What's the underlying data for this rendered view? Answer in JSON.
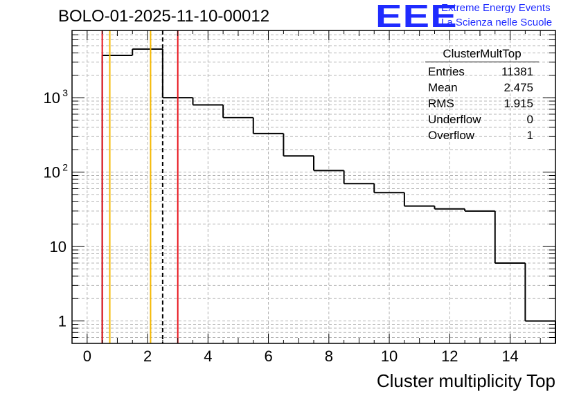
{
  "chart_data": {
    "type": "histogram",
    "title": "BOLO-01-2025-11-10-00012",
    "xlabel": "Cluster multiplicity Top",
    "ylabel": "",
    "yscale": "log",
    "xlim": [
      -0.5,
      15.5
    ],
    "ylim": [
      0.5,
      8000
    ],
    "bins": [
      {
        "lo": 0.5,
        "hi": 1.5,
        "value": 3700
      },
      {
        "lo": 1.5,
        "hi": 2.5,
        "value": 4500
      },
      {
        "lo": 2.5,
        "hi": 3.5,
        "value": 1000
      },
      {
        "lo": 3.5,
        "hi": 4.5,
        "value": 800
      },
      {
        "lo": 4.5,
        "hi": 5.5,
        "value": 540
      },
      {
        "lo": 5.5,
        "hi": 6.5,
        "value": 330
      },
      {
        "lo": 6.5,
        "hi": 7.5,
        "value": 165
      },
      {
        "lo": 7.5,
        "hi": 8.5,
        "value": 105
      },
      {
        "lo": 8.5,
        "hi": 9.5,
        "value": 70
      },
      {
        "lo": 9.5,
        "hi": 10.5,
        "value": 53
      },
      {
        "lo": 10.5,
        "hi": 11.5,
        "value": 35
      },
      {
        "lo": 11.5,
        "hi": 12.5,
        "value": 32
      },
      {
        "lo": 12.5,
        "hi": 13.5,
        "value": 30
      },
      {
        "lo": 13.5,
        "hi": 14.5,
        "value": 6
      },
      {
        "lo": 14.5,
        "hi": 15.5,
        "value": 1
      }
    ],
    "x_ticks": [
      {
        "v": 0,
        "label": "0"
      },
      {
        "v": 2,
        "label": "2"
      },
      {
        "v": 4,
        "label": "4"
      },
      {
        "v": 6,
        "label": "6"
      },
      {
        "v": 8,
        "label": "8"
      },
      {
        "v": 10,
        "label": "10"
      },
      {
        "v": 12,
        "label": "12"
      },
      {
        "v": 14,
        "label": "14"
      }
    ],
    "y_ticks": [
      {
        "v": 1,
        "base": "1",
        "exp": ""
      },
      {
        "v": 10,
        "base": "10",
        "exp": ""
      },
      {
        "v": 100,
        "base": "10",
        "exp": "2"
      },
      {
        "v": 1000,
        "base": "10",
        "exp": "3"
      }
    ],
    "vertical_lines": [
      {
        "x": 0.5,
        "color": "#e8121b",
        "style": "solid"
      },
      {
        "x": 0.75,
        "color": "#f5b800",
        "style": "solid"
      },
      {
        "x": 2.1,
        "color": "#f5b800",
        "style": "solid"
      },
      {
        "x": 2.5,
        "color": "#000000",
        "style": "dashed"
      },
      {
        "x": 3.0,
        "color": "#e8121b",
        "style": "solid"
      }
    ],
    "grid": true
  },
  "logo": {
    "mark": "EEE",
    "line1": "Extreme Energy Events",
    "line2": "La Scienza nelle Scuole",
    "color": "#1f2bff"
  },
  "stats": {
    "title": "ClusterMultTop",
    "rows": [
      {
        "label": "Entries",
        "value": "11381"
      },
      {
        "label": "Mean",
        "value": "2.475"
      },
      {
        "label": "RMS",
        "value": "1.915"
      },
      {
        "label": "Underflow",
        "value": "0"
      },
      {
        "label": "Overflow",
        "value": "1"
      }
    ]
  }
}
